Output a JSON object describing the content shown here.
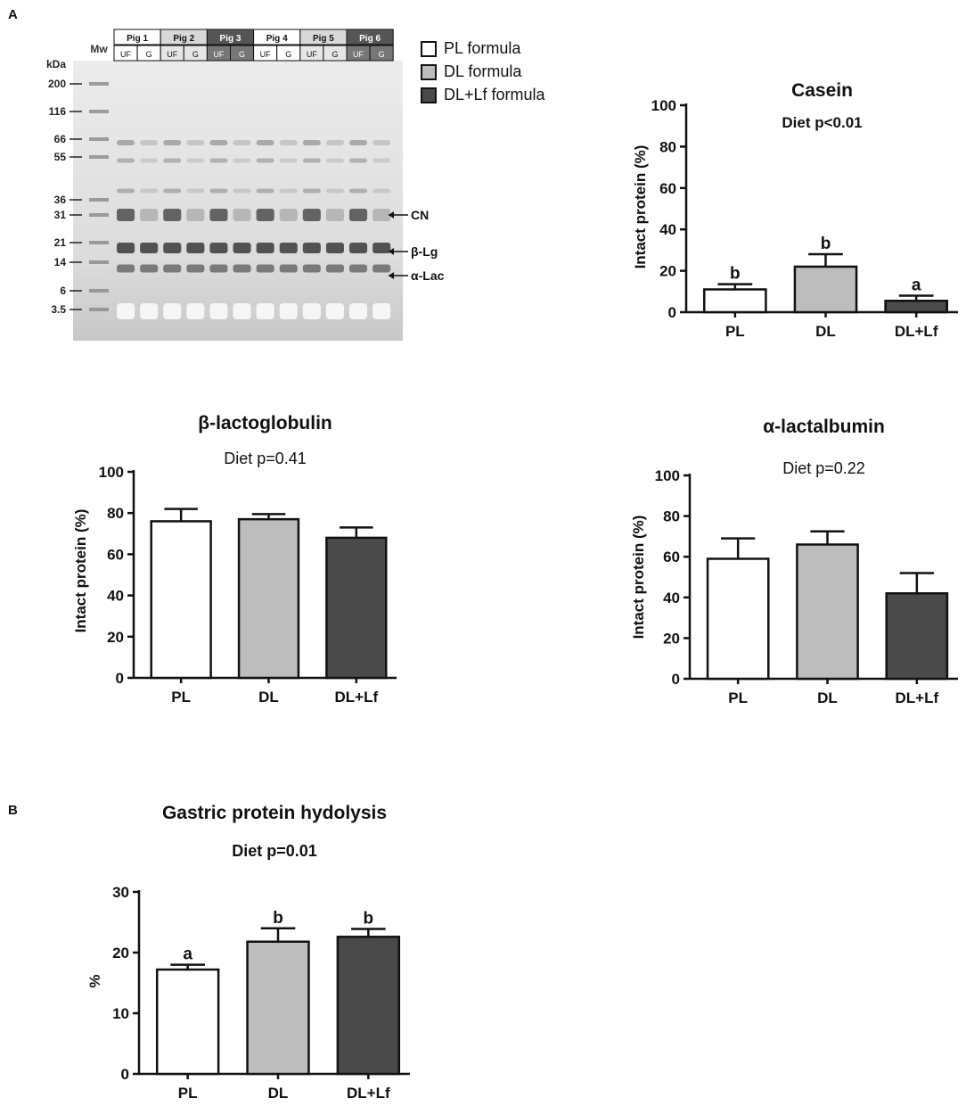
{
  "panel_labels": {
    "a": "A",
    "b": "B"
  },
  "gel": {
    "mw_label": "Mw",
    "kda_label": "kDa",
    "markers": [
      "200",
      "116",
      "66",
      "55",
      "36",
      "31",
      "21",
      "14",
      "6",
      "3.5"
    ],
    "pigs": [
      {
        "name": "Pig 1",
        "lanes": [
          "UF",
          "G"
        ],
        "formula": "PL"
      },
      {
        "name": "Pig 2",
        "lanes": [
          "UF",
          "G"
        ],
        "formula": "DL"
      },
      {
        "name": "Pig 3",
        "lanes": [
          "UF",
          "G"
        ],
        "formula": "DL+Lf"
      },
      {
        "name": "Pig 4",
        "lanes": [
          "UF",
          "G"
        ],
        "formula": "PL"
      },
      {
        "name": "Pig 5",
        "lanes": [
          "UF",
          "G"
        ],
        "formula": "DL"
      },
      {
        "name": "Pig 6",
        "lanes": [
          "UF",
          "G"
        ],
        "formula": "DL+Lf"
      }
    ],
    "band_labels": [
      "CN",
      "β-Lg",
      "α-Lac"
    ]
  },
  "legend": [
    {
      "label": "PL formula",
      "color": "#ffffff"
    },
    {
      "label": "DL formula",
      "color": "#bdbdbd"
    },
    {
      "label": "DL+Lf formula",
      "color": "#4a4a4a"
    }
  ],
  "chart_data": [
    {
      "id": "casein",
      "type": "bar",
      "title": "Casein",
      "subtitle": "Diet p<0.01",
      "ylabel": "Intact protein (%)",
      "categories": [
        "PL",
        "DL",
        "DL+Lf"
      ],
      "values": [
        11,
        22,
        5.5
      ],
      "errors": [
        2.5,
        6,
        2.5
      ],
      "letters": [
        "b",
        "b",
        "a"
      ],
      "colors": [
        "#ffffff",
        "#bdbdbd",
        "#4a4a4a"
      ],
      "ylim": [
        0,
        100
      ],
      "yticks": [
        0,
        20,
        40,
        60,
        80,
        100
      ]
    },
    {
      "id": "blg",
      "type": "bar",
      "title": "β-lactoglobulin",
      "subtitle": "Diet p=0.41",
      "ylabel": "Intact protein (%)",
      "categories": [
        "PL",
        "DL",
        "DL+Lf"
      ],
      "values": [
        76,
        77,
        68
      ],
      "errors": [
        6,
        2.5,
        5
      ],
      "letters": [
        "",
        "",
        ""
      ],
      "colors": [
        "#ffffff",
        "#bdbdbd",
        "#4a4a4a"
      ],
      "ylim": [
        0,
        100
      ],
      "yticks": [
        0,
        20,
        40,
        60,
        80,
        100
      ]
    },
    {
      "id": "alac",
      "type": "bar",
      "title": "α-lactalbumin",
      "subtitle": "Diet p=0.22",
      "ylabel": "Intact protein (%)",
      "categories": [
        "PL",
        "DL",
        "DL+Lf"
      ],
      "values": [
        59,
        66,
        42
      ],
      "errors": [
        10,
        6.5,
        10
      ],
      "letters": [
        "",
        "",
        ""
      ],
      "colors": [
        "#ffffff",
        "#bdbdbd",
        "#4a4a4a"
      ],
      "ylim": [
        0,
        100
      ],
      "yticks": [
        0,
        20,
        40,
        60,
        80,
        100
      ]
    },
    {
      "id": "hydrolysis",
      "type": "bar",
      "title": "Gastric protein hydolysis",
      "subtitle": "Diet p=0.01",
      "ylabel": "%",
      "categories": [
        "PL",
        "DL",
        "DL+Lf"
      ],
      "values": [
        17.2,
        21.8,
        22.6
      ],
      "errors": [
        0.8,
        2.2,
        1.3
      ],
      "letters": [
        "a",
        "b",
        "b"
      ],
      "colors": [
        "#ffffff",
        "#bdbdbd",
        "#4a4a4a"
      ],
      "ylim": [
        0,
        30
      ],
      "yticks": [
        0,
        10,
        20,
        30
      ]
    }
  ]
}
